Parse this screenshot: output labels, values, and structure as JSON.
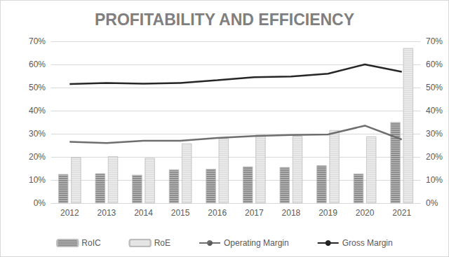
{
  "chart_data": {
    "type": "bar",
    "title": "PROFITABILITY AND EFFICIENCY",
    "categories": [
      "2012",
      "2013",
      "2014",
      "2015",
      "2016",
      "2017",
      "2018",
      "2019",
      "2020",
      "2021"
    ],
    "series": [
      {
        "name": "RoIC",
        "type": "bar",
        "color": "#8c8c8c",
        "values": [
          12.5,
          12.8,
          12.2,
          14.5,
          14.7,
          15.8,
          15.5,
          16.3,
          12.7,
          35
        ]
      },
      {
        "name": "RoE",
        "type": "bar",
        "color": "#e0e0e0",
        "values": [
          19.8,
          20.2,
          19.5,
          25.8,
          28,
          29.5,
          29,
          31.5,
          28.8,
          67
        ]
      },
      {
        "name": "Operating Margin",
        "type": "line",
        "axis": "y2",
        "color": "#6e6e6e",
        "values": [
          26.5,
          26,
          27,
          27,
          28.2,
          29,
          29.5,
          29.7,
          33.5,
          27.5
        ]
      },
      {
        "name": "Gross Margin",
        "type": "line",
        "axis": "y2",
        "color": "#262626",
        "values": [
          51.5,
          52,
          51.7,
          52,
          53.2,
          54.5,
          54.8,
          56,
          60,
          56.8
        ]
      }
    ],
    "ylim": [
      0,
      70
    ],
    "yticks": [
      {
        "value": 0,
        "label": "0%"
      },
      {
        "value": 10,
        "label": "10%"
      },
      {
        "value": 20,
        "label": "20%"
      },
      {
        "value": 30,
        "label": "30%"
      },
      {
        "value": 40,
        "label": "40%"
      },
      {
        "value": 50,
        "label": "50%"
      },
      {
        "value": 60,
        "label": "60%"
      },
      {
        "value": 70,
        "label": "70%"
      }
    ],
    "y2lim": [
      0,
      70
    ],
    "y2ticks": [
      {
        "value": 0,
        "label": "0%"
      },
      {
        "value": 10,
        "label": "10%"
      },
      {
        "value": 20,
        "label": "20%"
      },
      {
        "value": 30,
        "label": "30%"
      },
      {
        "value": 40,
        "label": "40%"
      },
      {
        "value": 50,
        "label": "50%"
      },
      {
        "value": 60,
        "label": "60%"
      },
      {
        "value": 70,
        "label": "70%"
      }
    ],
    "grid": true,
    "legend": "bottom"
  }
}
